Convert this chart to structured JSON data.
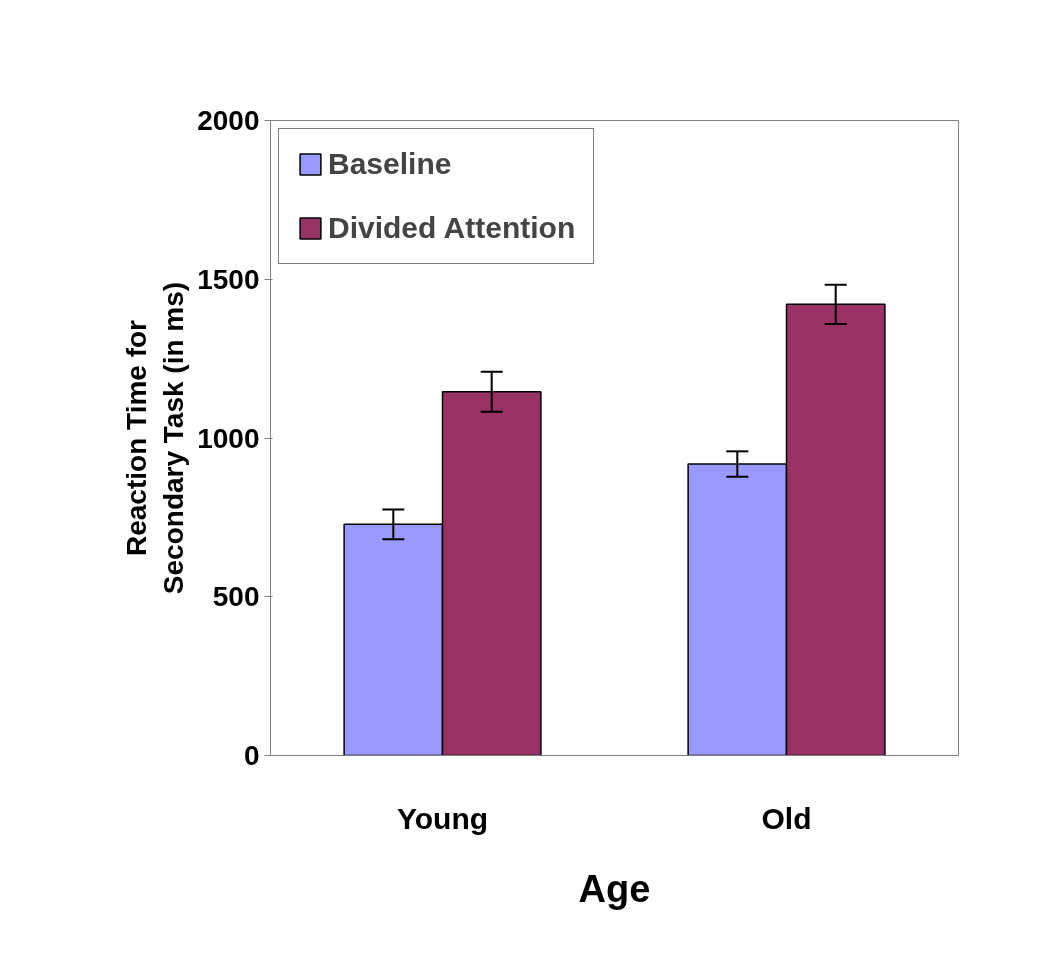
{
  "chart_data": {
    "type": "bar",
    "xlabel": "Age",
    "ylabel": "Reaction Time for\nSecondary Task (in ms)",
    "categories": [
      "Young",
      "Old"
    ],
    "series": [
      {
        "name": "Baseline",
        "color": "#9999ff",
        "values": [
          728,
          918
        ],
        "errors": [
          47,
          40
        ]
      },
      {
        "name": "Divided Attention",
        "color": "#993366",
        "values": [
          1146,
          1421
        ],
        "errors": [
          63,
          62
        ]
      }
    ],
    "ylim": [
      0,
      2000
    ],
    "yticks": [
      0,
      500,
      1000,
      1500,
      2000
    ],
    "grid": false,
    "legend": "top left"
  }
}
